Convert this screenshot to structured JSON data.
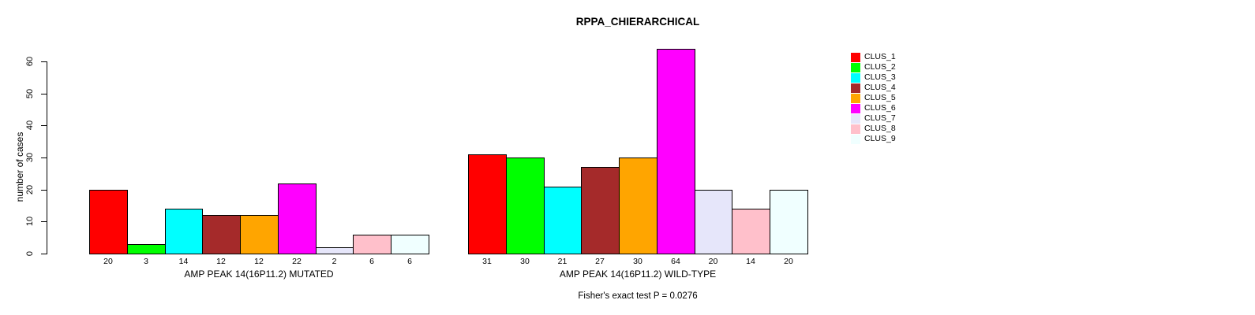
{
  "figure": {
    "title": "RPPA_CHIERARCHICAL",
    "annotation": "Fisher's exact test P = 0.0276",
    "ylabel": "number of cases"
  },
  "chart_data": {
    "type": "bar",
    "title": "RPPA_CHIERARCHICAL",
    "ylabel": "number of cases",
    "ylim": [
      0,
      60
    ],
    "yticks": [
      0,
      10,
      20,
      30,
      40,
      50,
      60
    ],
    "grid": false,
    "legend_position": "right-outside",
    "annotation": "Fisher's exact test P = 0.0276",
    "series_labels": [
      "CLUS_1",
      "CLUS_2",
      "CLUS_3",
      "CLUS_4",
      "CLUS_5",
      "CLUS_6",
      "CLUS_7",
      "CLUS_8",
      "CLUS_9"
    ],
    "colors": [
      "#FF0000",
      "#00FF00",
      "#00FFFF",
      "#A52A2A",
      "#FFA500",
      "#FF00FF",
      "#E6E6FA",
      "#FFC0CB",
      "#F0FFFF"
    ],
    "groups": [
      {
        "xlabel": "AMP PEAK 14(16P11.2) MUTATED",
        "values": [
          20,
          3,
          14,
          12,
          12,
          22,
          2,
          6,
          6
        ],
        "bar_labels": [
          "20",
          "3",
          "14",
          "12",
          "12",
          "22",
          "2",
          "6",
          "6"
        ]
      },
      {
        "xlabel": "AMP PEAK 14(16P11.2) WILD-TYPE",
        "values": [
          31,
          30,
          21,
          27,
          30,
          64,
          20,
          14,
          20
        ],
        "bar_labels": [
          "31",
          "30",
          "21",
          "27",
          "30",
          "64",
          "20",
          "14",
          "20"
        ]
      }
    ]
  }
}
